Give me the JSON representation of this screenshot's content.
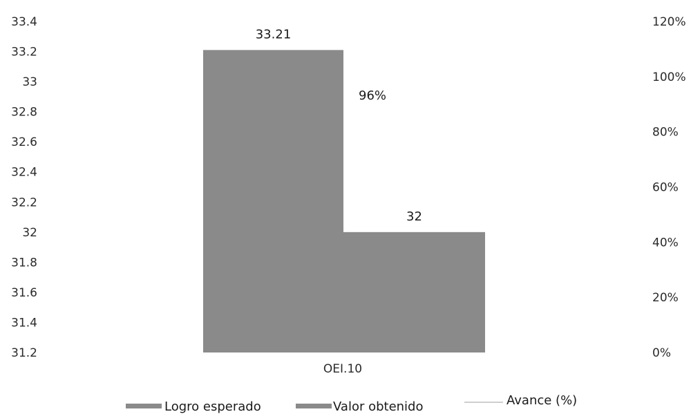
{
  "chart_data": {
    "type": "bar",
    "categories": [
      "OEI.10"
    ],
    "series": [
      {
        "name": "Logro esperado",
        "values": [
          33.21
        ],
        "axis": "left",
        "label": "33.21",
        "color": "#8a8a8a"
      },
      {
        "name": "Valor obtenido",
        "values": [
          32
        ],
        "axis": "left",
        "label": "32",
        "color": "#8a8a8a"
      },
      {
        "name": "Avance (%)",
        "values": [
          96
        ],
        "axis": "right",
        "label": "96%",
        "color": "#cfcfcf",
        "type": "line"
      }
    ],
    "y_left": {
      "ylim": [
        31.2,
        33.4
      ],
      "ticks": [
        "33.4",
        "33.2",
        "33",
        "32.8",
        "32.6",
        "32.4",
        "32.2",
        "32",
        "31.8",
        "31.6",
        "31.4",
        "31.2"
      ],
      "tick_values": [
        33.4,
        33.2,
        33,
        32.8,
        32.6,
        32.4,
        32.2,
        32,
        31.8,
        31.6,
        31.4,
        31.2
      ]
    },
    "y_right": {
      "ylim": [
        0,
        120
      ],
      "ticks": [
        "120%",
        "100%",
        "80%",
        "60%",
        "40%",
        "20%",
        "0%"
      ],
      "tick_values": [
        120,
        100,
        80,
        60,
        40,
        20,
        0
      ]
    },
    "legend": {
      "position": "bottom",
      "items": [
        "Logro esperado",
        "Valor obtenido",
        "Avance (%)"
      ]
    },
    "grid": false
  }
}
